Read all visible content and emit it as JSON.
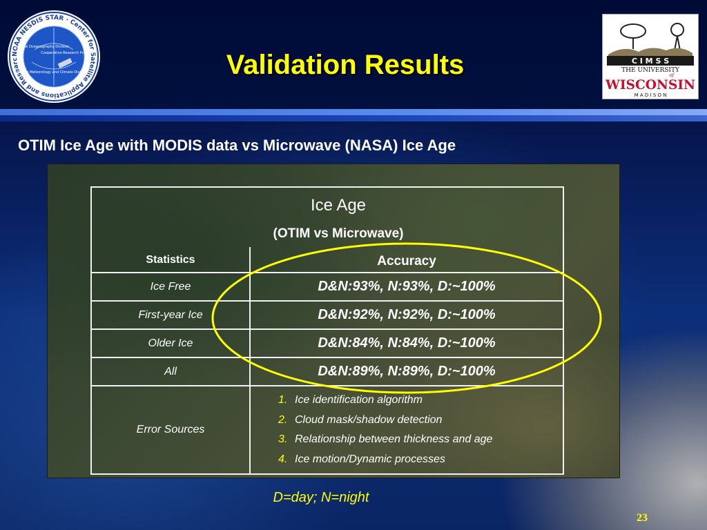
{
  "header": {
    "title": "Validation Results",
    "noaa_logo": {
      "ring_text": "NOAA NESDIS STAR · Center for Satellite Applications and Research",
      "divisions": [
        "Satellite Oceanography Division",
        "Cooperative Research Program",
        "Satellite Meteorology and Climate Division"
      ],
      "icon": "noaa-star-seal"
    },
    "cimss_logo": {
      "line1": "C I M S S",
      "line2": "THE UNIVERSITY",
      "line3": "of",
      "line4": "WISCONSIN",
      "line5": "M A D I S O N",
      "brand_color": "#c8102e"
    }
  },
  "subtitle": "OTIM Ice Age with MODIS data vs Microwave (NASA) Ice Age",
  "table": {
    "title": "Ice Age",
    "subtitle": "(OTIM vs Microwave)",
    "col_statistics": "Statistics",
    "col_accuracy": "Accuracy",
    "rows": [
      {
        "label": "Ice Free",
        "value": "D&N:93%, N:93%, D:~100%"
      },
      {
        "label": "First-year Ice",
        "value": "D&N:92%, N:92%, D:~100%"
      },
      {
        "label": "Older Ice",
        "value": "D&N:84%, N:84%, D:~100%"
      },
      {
        "label": "All",
        "value": "D&N:89%, N:89%, D:~100%"
      }
    ],
    "error_label": "Error Sources",
    "error_sources": [
      {
        "num": "1.",
        "text": "Ice identification algorithm"
      },
      {
        "num": "2.",
        "text": "Cloud mask/shadow detection"
      },
      {
        "num": "3.",
        "text": "Relationship between thickness and age"
      },
      {
        "num": "4.",
        "text": "Ice motion/Dynamic processes"
      }
    ]
  },
  "highlight_color": "#ffff00",
  "footnote": "D=day; N=night",
  "page_number": "23"
}
